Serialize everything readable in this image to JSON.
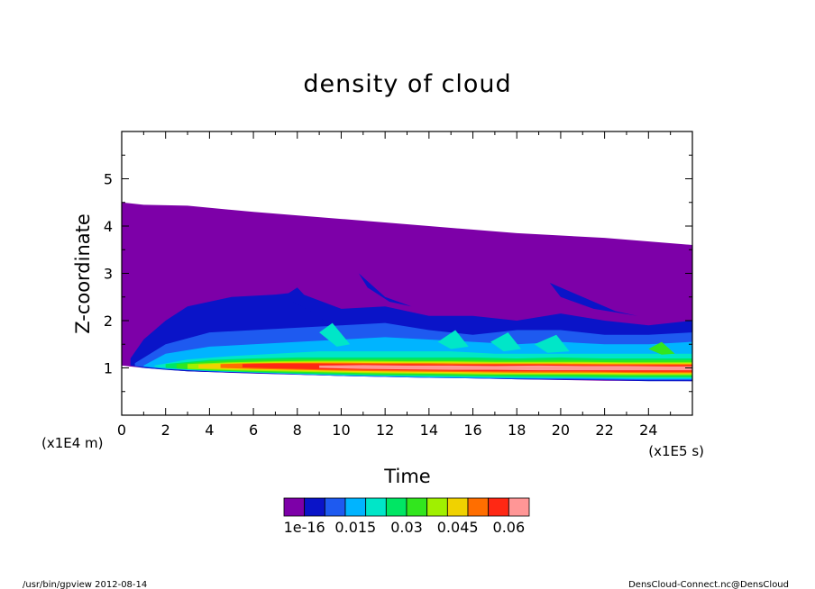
{
  "chart_data": {
    "type": "heatmap",
    "title": "density of cloud",
    "xlabel": "Time",
    "ylabel": "Z-coordinate",
    "x_unit": "(x1E5 s)",
    "y_unit": "(x1E4 m)",
    "xlim": [
      0,
      26
    ],
    "ylim": [
      0,
      6
    ],
    "xticks": [
      "0",
      "2",
      "4",
      "6",
      "8",
      "10",
      "12",
      "14",
      "16",
      "18",
      "20",
      "22",
      "24"
    ],
    "yticks": [
      "1",
      "2",
      "3",
      "4",
      "5"
    ],
    "colorbar": {
      "colors": [
        "#7d00a8",
        "#0a14c8",
        "#1e5af0",
        "#00b4ff",
        "#00e6c8",
        "#00e664",
        "#32e61e",
        "#a0f000",
        "#f0d200",
        "#ff6e00",
        "#ff2814",
        "#ff9696"
      ],
      "labels": [
        "1e-16",
        "0.015",
        "0.03",
        "0.045",
        "0.06"
      ]
    },
    "regions": [
      {
        "level": "1e-16",
        "color": "#7d00a8",
        "x": [
          0,
          1,
          3,
          6,
          10,
          14,
          18,
          22,
          26
        ],
        "top": [
          4.5,
          4.45,
          4.43,
          4.3,
          4.15,
          4.0,
          3.85,
          3.75,
          3.6
        ],
        "bottom": [
          1.05,
          1.0,
          0.93,
          0.88,
          0.83,
          0.8,
          0.76,
          0.73,
          0.72
        ]
      },
      {
        "level": "0.005",
        "color": "#0a14c8",
        "x": [
          0.4,
          1,
          2,
          3,
          5,
          7,
          8,
          10,
          12,
          14,
          16,
          18,
          20,
          22,
          24,
          26
        ],
        "top": [
          1.2,
          1.6,
          2.0,
          2.3,
          2.5,
          2.55,
          2.6,
          2.25,
          2.3,
          2.1,
          2.1,
          2.0,
          2.15,
          2.0,
          1.9,
          2.0
        ],
        "bottom": [
          1.05,
          1.0,
          0.96,
          0.93,
          0.9,
          0.87,
          0.86,
          0.83,
          0.81,
          0.79,
          0.78,
          0.76,
          0.75,
          0.74,
          0.72,
          0.72
        ]
      },
      {
        "level": "0.01",
        "color": "#1e5af0",
        "x": [
          0.6,
          2,
          4,
          6,
          8,
          10,
          12,
          14,
          16,
          18,
          20,
          22,
          24,
          26
        ],
        "top": [
          1.1,
          1.5,
          1.75,
          1.8,
          1.85,
          1.9,
          1.95,
          1.8,
          1.7,
          1.8,
          1.8,
          1.7,
          1.7,
          1.75
        ],
        "bottom": [
          1.04,
          0.98,
          0.93,
          0.9,
          0.86,
          0.83,
          0.81,
          0.79,
          0.78,
          0.77,
          0.76,
          0.75,
          0.74,
          0.74
        ]
      },
      {
        "level": "0.015",
        "color": "#00b4ff",
        "x": [
          1,
          2,
          4,
          6,
          8,
          10,
          12,
          14,
          16,
          18,
          20,
          22,
          24,
          26
        ],
        "top": [
          1.05,
          1.3,
          1.45,
          1.5,
          1.55,
          1.6,
          1.65,
          1.6,
          1.55,
          1.5,
          1.55,
          1.5,
          1.5,
          1.55
        ],
        "bottom": [
          1.03,
          0.98,
          0.93,
          0.9,
          0.87,
          0.84,
          0.82,
          0.8,
          0.79,
          0.78,
          0.78,
          0.77,
          0.76,
          0.76
        ]
      },
      {
        "level": "0.02",
        "color": "#00e6c8",
        "x": [
          1.5,
          3,
          5,
          7,
          9,
          11,
          13,
          15,
          17,
          19,
          21,
          23,
          26
        ],
        "top": [
          1.05,
          1.18,
          1.25,
          1.3,
          1.35,
          1.35,
          1.35,
          1.35,
          1.3,
          1.3,
          1.3,
          1.3,
          1.3
        ],
        "bottom": [
          1.02,
          0.96,
          0.92,
          0.89,
          0.86,
          0.84,
          0.82,
          0.81,
          0.8,
          0.79,
          0.79,
          0.78,
          0.78
        ]
      },
      {
        "level": "0.025",
        "color": "#00e664",
        "x": [
          2,
          4,
          6,
          8,
          10,
          12,
          14,
          16,
          18,
          20,
          22,
          24,
          26
        ],
        "top": [
          1.08,
          1.17,
          1.2,
          1.22,
          1.22,
          1.22,
          1.22,
          1.22,
          1.2,
          1.22,
          1.2,
          1.2,
          1.2
        ],
        "bottom": [
          1.0,
          0.94,
          0.91,
          0.88,
          0.86,
          0.84,
          0.83,
          0.82,
          0.81,
          0.81,
          0.8,
          0.8,
          0.8
        ]
      },
      {
        "level": "0.03",
        "color": "#32e61e",
        "x": [
          2.5,
          4,
          6,
          8,
          10,
          12,
          14,
          16,
          18,
          20,
          22,
          24,
          26
        ],
        "top": [
          1.08,
          1.14,
          1.17,
          1.18,
          1.18,
          1.18,
          1.17,
          1.17,
          1.16,
          1.17,
          1.16,
          1.16,
          1.16
        ],
        "bottom": [
          0.99,
          0.95,
          0.92,
          0.9,
          0.88,
          0.86,
          0.85,
          0.84,
          0.84,
          0.83,
          0.83,
          0.83,
          0.83
        ]
      },
      {
        "level": "0.035",
        "color": "#a0f000",
        "x": [
          3,
          5,
          7,
          9,
          11,
          13,
          15,
          17,
          19,
          21,
          23,
          26
        ],
        "top": [
          1.08,
          1.12,
          1.14,
          1.15,
          1.15,
          1.14,
          1.14,
          1.13,
          1.13,
          1.13,
          1.12,
          1.12
        ],
        "bottom": [
          0.98,
          0.95,
          0.93,
          0.91,
          0.89,
          0.88,
          0.87,
          0.86,
          0.86,
          0.86,
          0.85,
          0.85
        ]
      },
      {
        "level": "0.04",
        "color": "#f0d200",
        "x": [
          3.5,
          5,
          7,
          9,
          11,
          13,
          15,
          17,
          19,
          21,
          23,
          26
        ],
        "top": [
          1.07,
          1.1,
          1.12,
          1.13,
          1.13,
          1.12,
          1.12,
          1.11,
          1.11,
          1.11,
          1.1,
          1.1
        ],
        "bottom": [
          0.99,
          0.97,
          0.95,
          0.93,
          0.91,
          0.9,
          0.89,
          0.88,
          0.88,
          0.88,
          0.87,
          0.87
        ]
      },
      {
        "level": "0.045",
        "color": "#ff6e00",
        "x": [
          4.5,
          6,
          8,
          10,
          12,
          14,
          16,
          18,
          20,
          22,
          24,
          26
        ],
        "top": [
          1.08,
          1.1,
          1.11,
          1.11,
          1.1,
          1.1,
          1.09,
          1.09,
          1.09,
          1.08,
          1.08,
          1.08
        ],
        "bottom": [
          1.0,
          0.98,
          0.96,
          0.94,
          0.93,
          0.92,
          0.91,
          0.9,
          0.9,
          0.9,
          0.89,
          0.89
        ]
      },
      {
        "level": "0.05",
        "color": "#ff2814",
        "x": [
          5.5,
          7,
          9,
          11,
          13,
          15,
          17,
          19,
          21,
          23,
          26
        ],
        "top": [
          1.08,
          1.09,
          1.09,
          1.08,
          1.08,
          1.07,
          1.07,
          1.07,
          1.06,
          1.06,
          1.06
        ],
        "bottom": [
          1.01,
          0.99,
          0.97,
          0.96,
          0.95,
          0.94,
          0.93,
          0.93,
          0.93,
          0.92,
          0.92
        ]
      },
      {
        "level": "0.055",
        "color": "#ff9696",
        "x": [
          9,
          11,
          13,
          15,
          17,
          19,
          21,
          23,
          25,
          26
        ],
        "top": [
          1.05,
          1.06,
          1.05,
          1.05,
          1.04,
          1.05,
          1.04,
          1.04,
          1.03,
          1.03
        ],
        "bottom": [
          1.0,
          0.98,
          0.97,
          0.96,
          0.96,
          0.95,
          0.95,
          0.95,
          0.95,
          0.95
        ]
      }
    ],
    "plumes": [
      {
        "color": "#0a14c8",
        "x": [
          7.5,
          8.0,
          8.6,
          9.2,
          8.6,
          7.8
        ],
        "y": [
          2.55,
          2.7,
          2.4,
          2.0,
          2.2,
          2.4
        ]
      },
      {
        "color": "#0a14c8",
        "x": [
          10.8,
          12.0,
          13.2,
          12.2,
          11.2
        ],
        "y": [
          3.0,
          2.5,
          2.3,
          2.4,
          2.7
        ]
      },
      {
        "color": "#0a14c8",
        "x": [
          19.5,
          20.5,
          22.5,
          23.5,
          21.5,
          20.0
        ],
        "y": [
          2.8,
          2.6,
          2.2,
          2.1,
          2.25,
          2.5
        ]
      },
      {
        "color": "#00e6c8",
        "x": [
          9.0,
          9.6,
          10.4,
          9.8
        ],
        "y": [
          1.75,
          1.95,
          1.5,
          1.45
        ]
      },
      {
        "color": "#00e6c8",
        "x": [
          14.4,
          15.2,
          15.8,
          15.0
        ],
        "y": [
          1.55,
          1.8,
          1.45,
          1.4
        ]
      },
      {
        "color": "#00e6c8",
        "x": [
          16.8,
          17.6,
          18.2,
          17.4
        ],
        "y": [
          1.55,
          1.75,
          1.4,
          1.35
        ]
      },
      {
        "color": "#00e6c8",
        "x": [
          18.8,
          19.8,
          20.4,
          19.4
        ],
        "y": [
          1.5,
          1.7,
          1.35,
          1.32
        ]
      },
      {
        "color": "#32e61e",
        "x": [
          24.0,
          24.6,
          25.2,
          24.6
        ],
        "y": [
          1.4,
          1.55,
          1.3,
          1.28
        ]
      }
    ]
  },
  "footer": {
    "left": "/usr/bin/gpview   2012-08-14",
    "right": "DensCloud-Connect.nc@DensCloud"
  }
}
